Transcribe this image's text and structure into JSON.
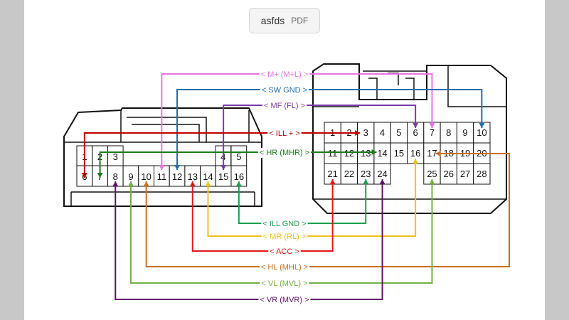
{
  "document": {
    "name": "asfds",
    "type": "PDF"
  },
  "left_connector": {
    "top_pins": [
      "1",
      "2",
      "3",
      "4",
      "5"
    ],
    "bottom_pins": [
      "6",
      "7",
      "8",
      "9",
      "10",
      "11",
      "12",
      "13",
      "14",
      "15",
      "16"
    ]
  },
  "right_connector": {
    "row1": [
      "1",
      "2",
      "3",
      "4",
      "5",
      "6",
      "7",
      "8",
      "9",
      "10"
    ],
    "row2": [
      "11",
      "12",
      "13",
      "14",
      "15",
      "16",
      "17",
      "18",
      "19",
      "20"
    ],
    "row3": [
      "21",
      "22",
      "23",
      "24",
      "",
      "",
      "25",
      "26",
      "27",
      "28"
    ]
  },
  "wires": [
    {
      "label": "< M+ (M+L) >",
      "color": "#e873e8",
      "left_pin": "11",
      "right_pin": "7"
    },
    {
      "label": "< SW GND >",
      "color": "#1f6fb0",
      "left_pin": "12",
      "right_pin": "10"
    },
    {
      "label": "< MF (FL) >",
      "color": "#7a3aa8",
      "left_pin": "15",
      "right_pin": "6"
    },
    {
      "label": "< ILL + >",
      "color": "#c00000",
      "left_pin": "6",
      "right_pin": "3"
    },
    {
      "label": "< HR (MHR) >",
      "color": "#1e7a1e",
      "left_pin": "7",
      "right_pin": "14"
    },
    {
      "label": "< ILL GND >",
      "color": "#1aa050",
      "left_pin": "16",
      "right_pin": "23"
    },
    {
      "label": "< MR (RL) >",
      "color": "#f0c020",
      "left_pin": "14",
      "right_pin": "16"
    },
    {
      "label": "< ACC >",
      "color": "#e01818",
      "left_pin": "13",
      "right_pin": "21"
    },
    {
      "label": "< HL (MHL) >",
      "color": "#c87020",
      "left_pin": "10",
      "right_pin": "17"
    },
    {
      "label": "< VL (MVL) >",
      "color": "#72b045",
      "left_pin": "9",
      "right_pin": "25"
    },
    {
      "label": "< VR (MVR) >",
      "color": "#5e1068",
      "left_pin": "8",
      "right_pin": "24"
    }
  ]
}
